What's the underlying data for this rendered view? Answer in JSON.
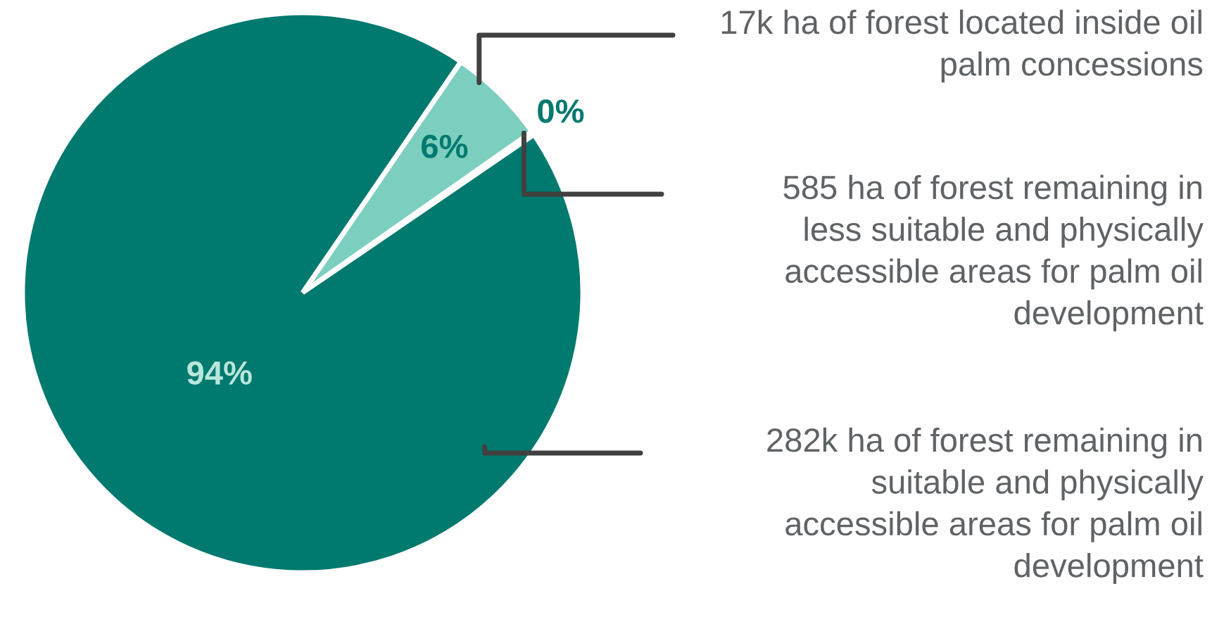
{
  "chart_data": {
    "type": "pie",
    "categories": [
      null,
      null,
      null
    ],
    "values": [
      5.7,
      0.2,
      94.1
    ],
    "value_labels": [
      "6%",
      "0%",
      "94%"
    ],
    "colors": [
      "#7ccfbf",
      "#e8f5f2",
      "#00796f"
    ],
    "legend": false,
    "annotations": [
      "17k ha of forest located inside oil\npalm concessions",
      "585 ha of forest remaining in\nless suitable and physically\naccessible areas for palm oil\ndevelopment",
      "282k ha of forest remaining in\nsuitable and physically\naccessible areas for palm oil\ndevelopment"
    ]
  }
}
